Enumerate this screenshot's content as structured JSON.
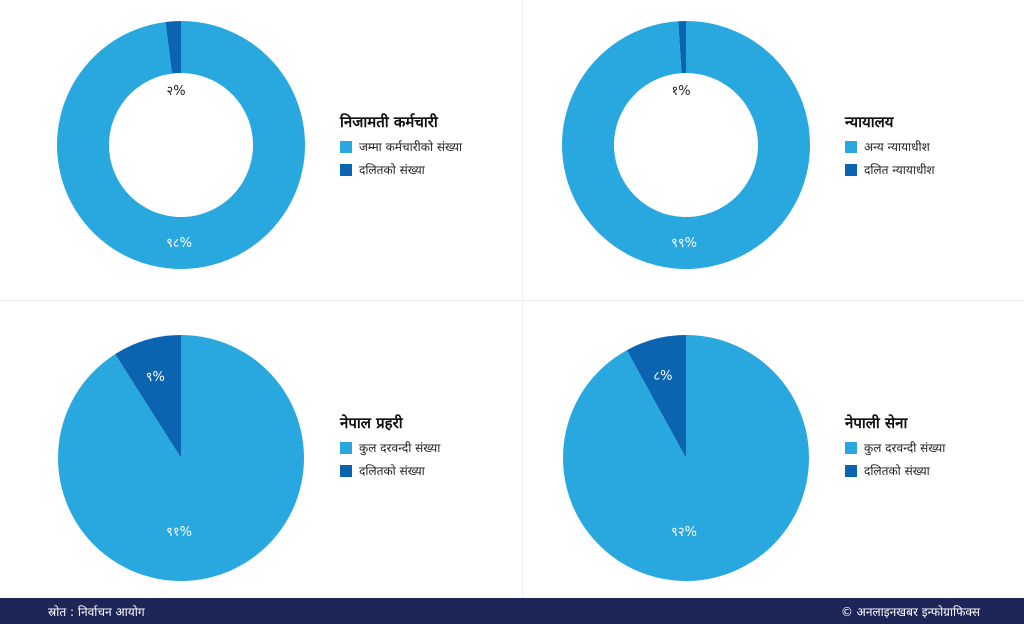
{
  "chart_data": [
    {
      "type": "pie",
      "style": "donut",
      "title": "निजामती कर्मचारी",
      "categories": [
        "जम्मा कर्मचारीको संख्या",
        "दलितको संख्या"
      ],
      "values": [
        98,
        2
      ],
      "data_labels": [
        "९८%",
        "२%"
      ],
      "colors": [
        "#29a8df",
        "#0b64b0"
      ]
    },
    {
      "type": "pie",
      "style": "donut",
      "title": "न्यायालय",
      "categories": [
        "अन्य न्यायाधीश",
        "दलित न्यायाधीश"
      ],
      "values": [
        99,
        1
      ],
      "data_labels": [
        "९९%",
        "१%"
      ],
      "colors": [
        "#29a8df",
        "#0b64b0"
      ]
    },
    {
      "type": "pie",
      "title": "नेपाल प्रहरी",
      "categories": [
        "कुल दरवन्दी संख्या",
        "दलितको संख्या"
      ],
      "values": [
        91,
        9
      ],
      "data_labels": [
        "९१%",
        "९%"
      ],
      "colors": [
        "#29a8df",
        "#0b64b0"
      ]
    },
    {
      "type": "pie",
      "title": "नेपाली सेना",
      "categories": [
        "कुल दरवन्दी संख्या",
        "दलितको संख्या"
      ],
      "values": [
        92,
        8
      ],
      "data_labels": [
        "९२%",
        "८%"
      ],
      "colors": [
        "#29a8df",
        "#0b64b0"
      ]
    }
  ],
  "footer": {
    "source": "स्रोत : निर्वाचन आयोग",
    "credit": "© अनलाइनखबर इन्फोग्राफिक्स"
  }
}
